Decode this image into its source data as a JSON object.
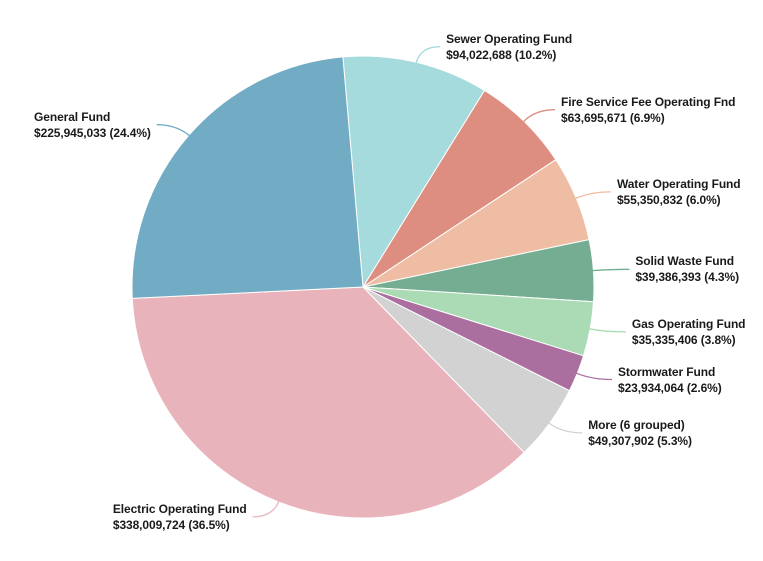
{
  "chart_data": {
    "type": "pie",
    "title": "",
    "legend": "none",
    "labels_position": "outside",
    "leader_lines": true,
    "direction": "clockwise",
    "start_angle_deg": -5,
    "slices": [
      {
        "label": "Sewer Operating Fund",
        "value": 94022688,
        "display": "$94,022,688 (10.2%)",
        "pct": 10.2,
        "color": "#a5dbdd"
      },
      {
        "label": "Fire Service Fee Operating Fnd",
        "value": 63695671,
        "display": "$63,695,671 (6.9%)",
        "pct": 6.9,
        "color": "#dd8e80"
      },
      {
        "label": "Water Operating Fund",
        "value": 55350832,
        "display": "$55,350,832 (6.0%)",
        "pct": 6.0,
        "color": "#eebda4"
      },
      {
        "label": "Solid Waste Fund",
        "value": 39386393,
        "display": "$39,386,393 (4.3%)",
        "pct": 4.3,
        "color": "#74ad92"
      },
      {
        "label": "Gas Operating Fund",
        "value": 35335406,
        "display": "$35,335,406 (3.8%)",
        "pct": 3.8,
        "color": "#abdbb4"
      },
      {
        "label": "Stormwater Fund",
        "value": 23934064,
        "display": "$23,934,064 (2.6%)",
        "pct": 2.6,
        "color": "#aa6f9f"
      },
      {
        "label": "More (6 grouped)",
        "value": 49307902,
        "display": "$49,307,902 (5.3%)",
        "pct": 5.3,
        "color": "#d2d2d2"
      },
      {
        "label": "Electric Operating Fund",
        "value": 338009724,
        "display": "$338,009,724 (36.5%)",
        "pct": 36.5,
        "color": "#e9b3bb"
      },
      {
        "label": "General Fund",
        "value": 225945033,
        "display": "$225,945,033 (24.4%)",
        "pct": 24.4,
        "color": "#71abc4"
      }
    ]
  }
}
